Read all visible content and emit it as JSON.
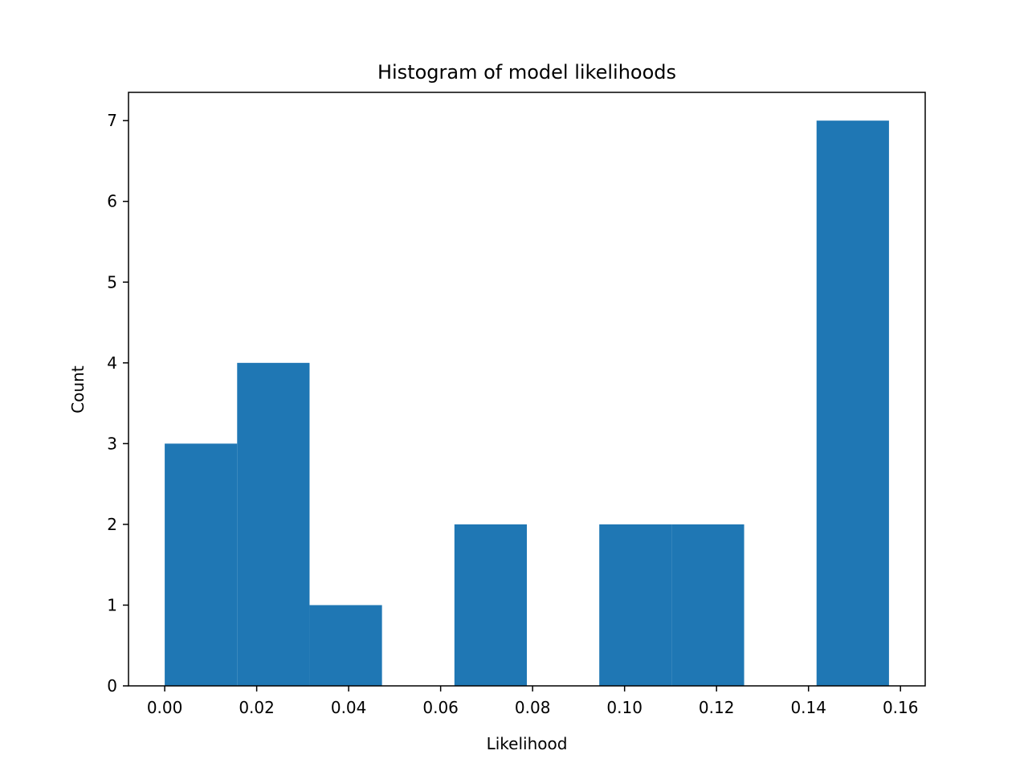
{
  "chart_data": {
    "type": "bar",
    "subtype": "histogram",
    "title": "Histogram of model likelihoods",
    "xlabel": "Likelihood",
    "ylabel": "Count",
    "bins": [
      {
        "start": 0.0,
        "end": 0.01575,
        "count": 3
      },
      {
        "start": 0.01575,
        "end": 0.0315,
        "count": 4
      },
      {
        "start": 0.0315,
        "end": 0.04725,
        "count": 1
      },
      {
        "start": 0.04725,
        "end": 0.063,
        "count": 0
      },
      {
        "start": 0.063,
        "end": 0.07875,
        "count": 2
      },
      {
        "start": 0.07875,
        "end": 0.0945,
        "count": 0
      },
      {
        "start": 0.0945,
        "end": 0.11025,
        "count": 2
      },
      {
        "start": 0.11025,
        "end": 0.126,
        "count": 2
      },
      {
        "start": 0.126,
        "end": 0.14175,
        "count": 0
      },
      {
        "start": 0.14175,
        "end": 0.1575,
        "count": 7
      }
    ],
    "xlim": [
      -0.007875,
      0.165375
    ],
    "ylim": [
      0,
      7.35
    ],
    "xticks": [
      "0.00",
      "0.02",
      "0.04",
      "0.06",
      "0.08",
      "0.10",
      "0.12",
      "0.14",
      "0.16"
    ],
    "yticks": [
      "0",
      "1",
      "2",
      "3",
      "4",
      "5",
      "6",
      "7"
    ],
    "grid": false,
    "legend": false,
    "bar_color": "#1f77b4"
  }
}
